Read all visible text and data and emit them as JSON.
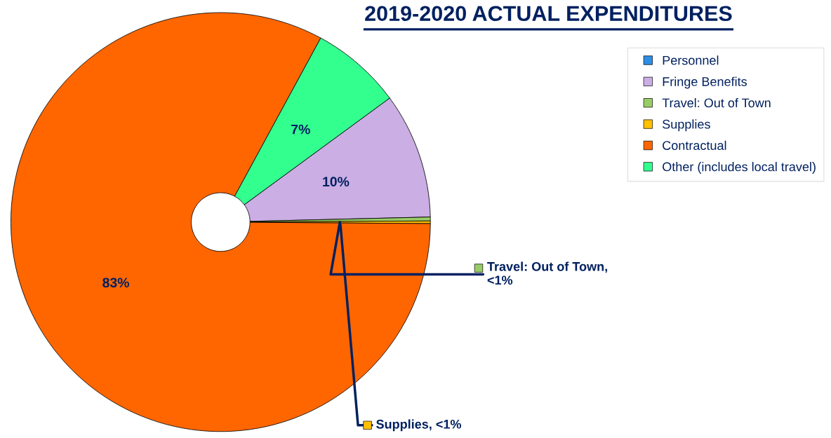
{
  "chart_data": {
    "type": "donut",
    "title": "2019-2020 ACTUAL EXPENDITURES",
    "categories": [
      "Personnel",
      "Fringe Benefits",
      "Travel: Out of Town",
      "Supplies",
      "Contractual",
      "Other (includes local travel)"
    ],
    "values": [
      0,
      9.7,
      0.3,
      0.2,
      82.8,
      7.0
    ],
    "colors": [
      "#2e8ee6",
      "#cbaee4",
      "#99cc66",
      "#ffc000",
      "#ff6600",
      "#33ff8f"
    ],
    "value_labels": [
      null,
      "10%",
      "Travel: Out of Town,\n<1%",
      "Supplies, <1%",
      "83%",
      "7%"
    ],
    "legend": "right"
  }
}
